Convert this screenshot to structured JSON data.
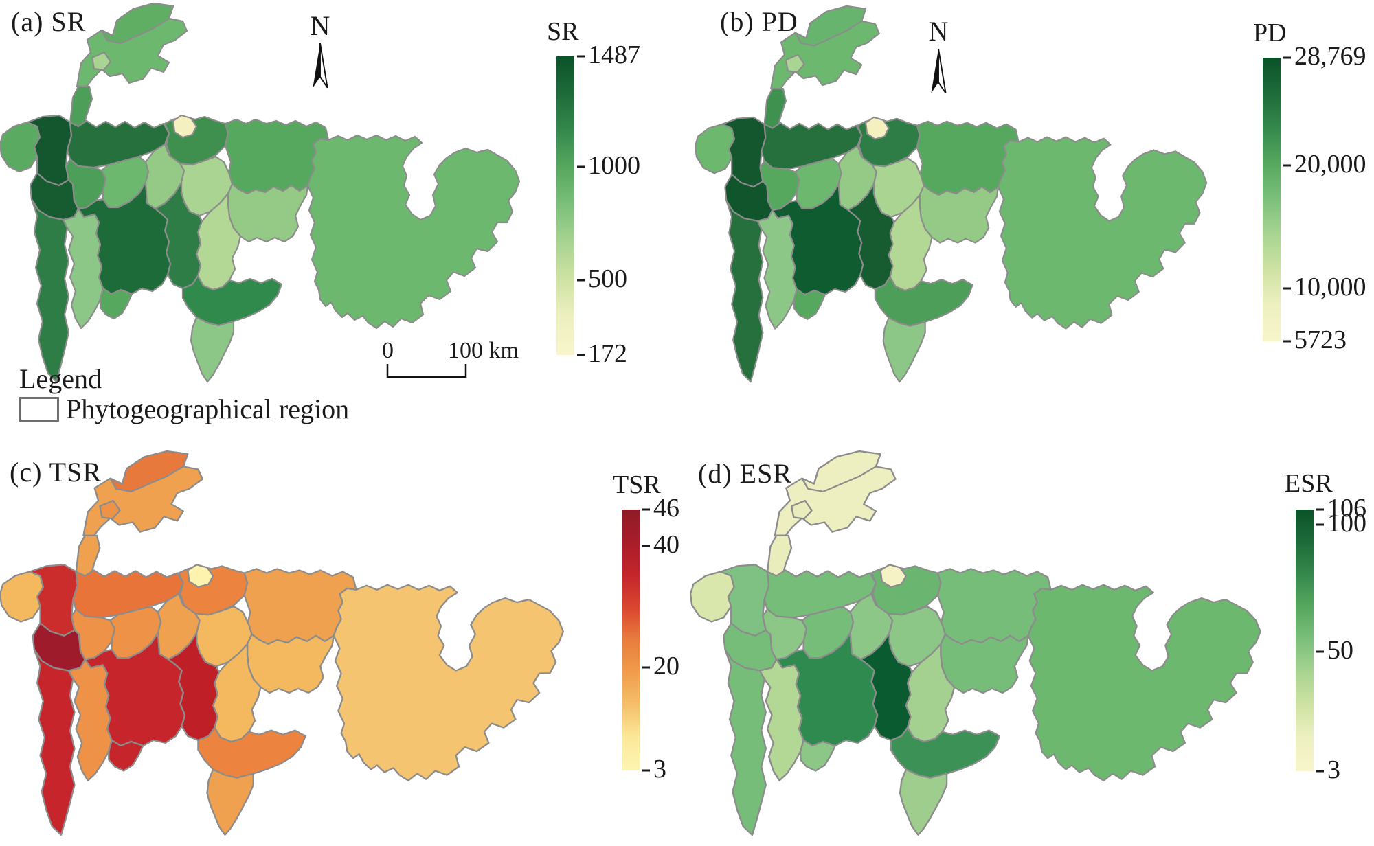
{
  "figure": {
    "north_label": "N",
    "legend": {
      "heading": "Legend",
      "item_label": "Phytogeographical region"
    },
    "scalebar": {
      "zero": "0",
      "label": "100 km"
    },
    "palettes": {
      "green": [
        "#0a5228",
        "#1e6b3a",
        "#35894c",
        "#57a85f",
        "#7cc07c",
        "#a9d491",
        "#cfe3a4",
        "#eef0c0",
        "#f8f5cc"
      ],
      "red": [
        "#8f1b28",
        "#a81d2a",
        "#c5252b",
        "#da462f",
        "#e87d3d",
        "#f09d4c",
        "#f5c06b",
        "#fbe89a",
        "#fdf5b2"
      ]
    },
    "panels": [
      {
        "id": "a",
        "label": "(a) SR",
        "colorbar": {
          "title": "SR",
          "palette": "green",
          "min": 172,
          "max": 1487,
          "ticks": [
            {
              "v": 1487,
              "t": "1487"
            },
            {
              "v": 1000,
              "t": "1000"
            },
            {
              "v": 500,
              "t": "500"
            },
            {
              "v": 172,
              "t": "172"
            }
          ]
        },
        "fills": {
          "A": "#5fae64",
          "B": "#6cb86e",
          "C": "#a9d491",
          "D": "#4c9e58",
          "E": "#5aaa61",
          "F": "#14572e",
          "G": "#26703d",
          "H": "#3f8f4e",
          "I": "#f5f0c0",
          "J": "#57a85f",
          "K": "#175c31",
          "L": "#4c9e58",
          "M2": "#6cb86e",
          "M": "#95ca86",
          "P": "#a9d491",
          "R": "#95ca86",
          "Q": "#b3d795",
          "O": "#2f7d46",
          "N": "#1e6b3a",
          "V": "#2f7d46",
          "W": "#8cc787",
          "X": "#57a85f",
          "T": "#2f8a4c",
          "U": "#8cc787",
          "S": "#6cb86e"
        }
      },
      {
        "id": "b",
        "label": "(b) PD",
        "colorbar": {
          "title": "PD",
          "palette": "green",
          "min": 5723,
          "max": 28769,
          "ticks": [
            {
              "v": 28769,
              "t": "28,769"
            },
            {
              "v": 20000,
              "t": "20,000"
            },
            {
              "v": 10000,
              "t": "10,000"
            },
            {
              "v": 5723,
              "t": "5723"
            }
          ]
        },
        "fills": {
          "A": "#66b46d",
          "B": "#6cb86e",
          "C": "#a9d491",
          "D": "#3f9150",
          "E": "#6cb86e",
          "F": "#14572e",
          "G": "#26703d",
          "H": "#2f7d46",
          "I": "#f5f0c0",
          "J": "#57a85f",
          "K": "#11552d",
          "L": "#57a85f",
          "M2": "#6cb86e",
          "M": "#95ca86",
          "P": "#a9d491",
          "R": "#95ca86",
          "Q": "#b3d795",
          "O": "#175c31",
          "N": "#0f5c31",
          "V": "#26703d",
          "W": "#8cc787",
          "X": "#57a85f",
          "T": "#4c9e58",
          "U": "#8cc787",
          "S": "#6cb86e"
        }
      },
      {
        "id": "c",
        "label": "(c) TSR",
        "colorbar": {
          "title": "TSR",
          "palette": "red",
          "min": 3,
          "max": 46,
          "ticks": [
            {
              "v": 46,
              "t": "46"
            },
            {
              "v": 40,
              "t": "40"
            },
            {
              "v": 20,
              "t": "20"
            },
            {
              "v": 3,
              "t": "3"
            }
          ]
        },
        "fills": {
          "A": "#e8793c",
          "B": "#f0a150",
          "C": "#ee9247",
          "D": "#f0a150",
          "E": "#f4b95f",
          "F": "#cb2d2c",
          "G": "#e8743a",
          "H": "#ec8440",
          "I": "#fdf3ae",
          "J": "#f0a150",
          "K": "#9e1b2b",
          "L": "#ee9247",
          "M2": "#ee9247",
          "M": "#f0a150",
          "P": "#f4b95f",
          "R": "#f4b95f",
          "Q": "#f4b95f",
          "O": "#bf2027",
          "N": "#c5252b",
          "V": "#c5252b",
          "W": "#ee9247",
          "X": "#c5252b",
          "T": "#ec8440",
          "U": "#f0a150",
          "S": "#f5c470"
        }
      },
      {
        "id": "d",
        "label": "(d) ESR",
        "colorbar": {
          "title": "ESR",
          "palette": "green",
          "min": 3,
          "max": 106,
          "ticks": [
            {
              "v": 106,
              "t": "106"
            },
            {
              "v": 100,
              "t": "100"
            },
            {
              "v": 50,
              "t": "50"
            },
            {
              "v": 3,
              "t": "3"
            }
          ]
        },
        "fills": {
          "A": "#eeefc0",
          "B": "#eeefc0",
          "C": "#e9edbb",
          "D": "#e9edbb",
          "E": "#d9e6ac",
          "F": "#7fc183",
          "G": "#77bd7a",
          "H": "#6ab671",
          "I": "#f5f2c6",
          "J": "#77bd7a",
          "K": "#77bd7a",
          "L": "#8cc787",
          "M2": "#77bd7a",
          "M": "#8cc787",
          "P": "#8cc787",
          "R": "#77bd7a",
          "Q": "#a5d190",
          "O": "#0a5c30",
          "N": "#2f8a50",
          "V": "#77bd7a",
          "W": "#b3d795",
          "X": "#8cc787",
          "T": "#3c9256",
          "U": "#9ecd8d",
          "S": "#6cb86e"
        }
      }
    ]
  },
  "chart_data": [
    {
      "type": "heatmap",
      "subtype": "choropleth-map",
      "title": "(a) SR",
      "legend_title": "SR",
      "scale_min": 172,
      "scale_max": 1487,
      "scale_ticks": [
        "1487",
        "1000",
        "500",
        "172"
      ],
      "palette": "yellow-green sequential (low=pale yellow, high=dark green)",
      "region_note": "Phytogeographical regions of Tajikistan; highest species richness in western/central regions, lowest in small north-central region"
    },
    {
      "type": "heatmap",
      "subtype": "choropleth-map",
      "title": "(b) PD",
      "legend_title": "PD",
      "scale_min": 5723,
      "scale_max": 28769,
      "scale_ticks": [
        "28,769",
        "20,000",
        "10,000",
        "5723"
      ],
      "palette": "yellow-green sequential (low=pale yellow, high=dark green)",
      "region_note": "Phylogenetic diversity pattern similar to SR; darkest in west-central regions"
    },
    {
      "type": "heatmap",
      "subtype": "choropleth-map",
      "title": "(c) TSR",
      "legend_title": "TSR",
      "scale_min": 3,
      "scale_max": 46,
      "scale_ticks": [
        "46",
        "40",
        "20",
        "3"
      ],
      "palette": "yellow-orange-red sequential (low=pale yellow, high=dark red)",
      "region_note": "Threatened species richness highest (dark red) in west/central regions, lowest (pale) in large eastern region"
    },
    {
      "type": "heatmap",
      "subtype": "choropleth-map",
      "title": "(d) ESR",
      "legend_title": "ESR",
      "scale_min": 3,
      "scale_max": 106,
      "scale_ticks": [
        "106",
        "100",
        "50",
        "3"
      ],
      "palette": "yellow-green sequential (low=pale yellow, high=dark green)",
      "region_note": "Endemic species richness highest (darkest green) in one central region; northern panhandle palest"
    }
  ]
}
